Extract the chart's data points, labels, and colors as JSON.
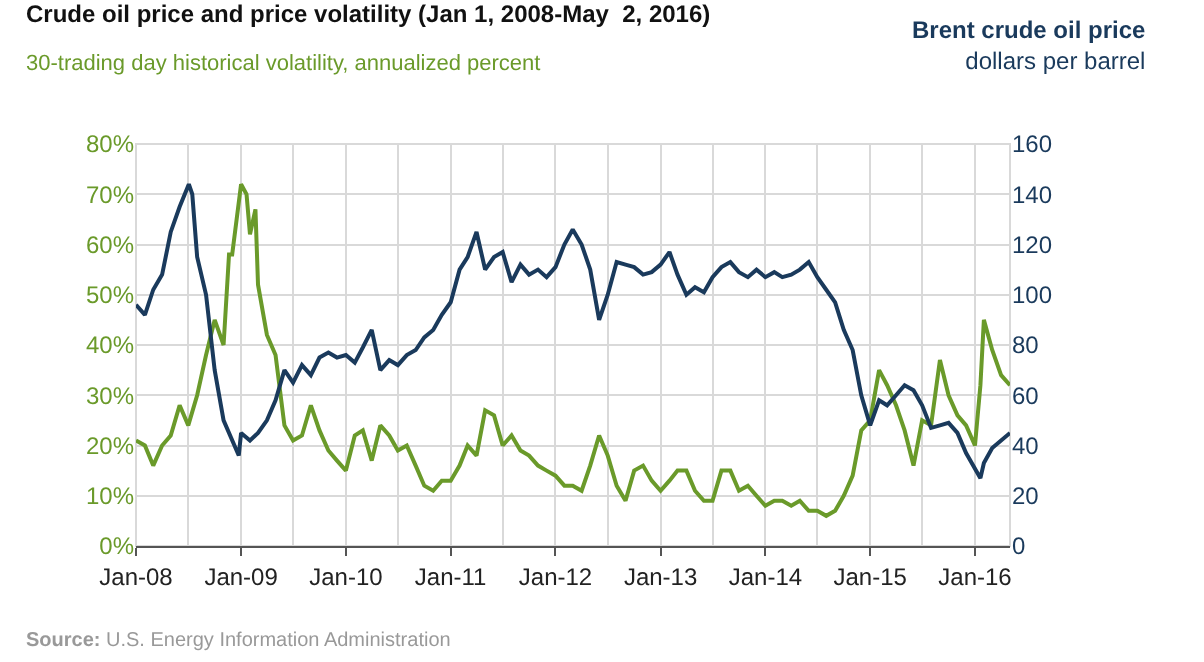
{
  "chart_data": {
    "type": "line",
    "title": "Crude oil price and price volatility (Jan 1, 2008-May  2, 2016)",
    "ylabel": "30-trading day historical volatility, annualized percent",
    "y2label": "Brent crude oil price\ndollars per barrel",
    "annotations": [
      "Source: U.S. Energy Information Administration"
    ],
    "xlim": [
      "2008-01-01",
      "2016-05-02"
    ],
    "xticks": [
      {
        "value": "2008-01-01",
        "label": "Jan-08"
      },
      {
        "value": "2009-01-01",
        "label": "Jan-09"
      },
      {
        "value": "2010-01-01",
        "label": "Jan-10"
      },
      {
        "value": "2011-01-01",
        "label": "Jan-11"
      },
      {
        "value": "2012-01-01",
        "label": "Jan-12"
      },
      {
        "value": "2013-01-01",
        "label": "Jan-13"
      },
      {
        "value": "2014-01-01",
        "label": "Jan-14"
      },
      {
        "value": "2015-01-01",
        "label": "Jan-15"
      },
      {
        "value": "2016-01-01",
        "label": "Jan-16"
      }
    ],
    "ylim": [
      0,
      80
    ],
    "yticks": [
      {
        "value": 0,
        "label": "0%"
      },
      {
        "value": 10,
        "label": "10%"
      },
      {
        "value": 20,
        "label": "20%"
      },
      {
        "value": 30,
        "label": "30%"
      },
      {
        "value": 40,
        "label": "40%"
      },
      {
        "value": 50,
        "label": "50%"
      },
      {
        "value": 60,
        "label": "60%"
      },
      {
        "value": 70,
        "label": "70%"
      },
      {
        "value": 80,
        "label": "80%"
      }
    ],
    "y2lim": [
      0,
      160
    ],
    "y2ticks": [
      0,
      20,
      40,
      60,
      80,
      100,
      120,
      140,
      160
    ],
    "grid": true,
    "series": [
      {
        "color": "#6a9a2a",
        "axis": "y",
        "x": [
          "2008-01-01",
          "2008-02-01",
          "2008-03-01",
          "2008-04-01",
          "2008-05-01",
          "2008-06-01",
          "2008-07-01",
          "2008-08-01",
          "2008-09-01",
          "2008-10-01",
          "2008-11-01",
          "2008-11-20",
          "2008-12-01",
          "2009-01-01",
          "2009-01-20",
          "2009-02-01",
          "2009-02-20",
          "2009-03-01",
          "2009-04-01",
          "2009-05-01",
          "2009-06-01",
          "2009-07-01",
          "2009-08-01",
          "2009-09-01",
          "2009-10-01",
          "2009-11-01",
          "2009-12-01",
          "2010-01-01",
          "2010-02-01",
          "2010-03-01",
          "2010-04-01",
          "2010-05-01",
          "2010-06-01",
          "2010-07-01",
          "2010-08-01",
          "2010-09-01",
          "2010-10-01",
          "2010-11-01",
          "2010-12-01",
          "2011-01-01",
          "2011-02-01",
          "2011-03-01",
          "2011-04-01",
          "2011-05-01",
          "2011-06-01",
          "2011-07-01",
          "2011-08-01",
          "2011-09-01",
          "2011-10-01",
          "2011-11-01",
          "2011-12-01",
          "2012-01-01",
          "2012-02-01",
          "2012-03-01",
          "2012-04-01",
          "2012-05-01",
          "2012-06-01",
          "2012-07-01",
          "2012-08-01",
          "2012-09-01",
          "2012-10-01",
          "2012-11-01",
          "2012-12-01",
          "2013-01-01",
          "2013-02-01",
          "2013-03-01",
          "2013-04-01",
          "2013-05-01",
          "2013-06-01",
          "2013-07-01",
          "2013-08-01",
          "2013-09-01",
          "2013-10-01",
          "2013-11-01",
          "2013-12-01",
          "2014-01-01",
          "2014-02-01",
          "2014-03-01",
          "2014-04-01",
          "2014-05-01",
          "2014-06-01",
          "2014-07-01",
          "2014-08-01",
          "2014-09-01",
          "2014-10-01",
          "2014-11-01",
          "2014-12-01",
          "2015-01-01",
          "2015-02-01",
          "2015-03-01",
          "2015-04-01",
          "2015-05-01",
          "2015-06-01",
          "2015-07-01",
          "2015-08-01",
          "2015-09-01",
          "2015-10-01",
          "2015-11-01",
          "2015-12-01",
          "2016-01-01",
          "2016-01-20",
          "2016-02-01",
          "2016-03-01",
          "2016-04-01",
          "2016-05-02"
        ],
        "values": [
          21,
          20,
          16,
          20,
          22,
          28,
          24,
          30,
          38,
          45,
          40,
          58,
          58,
          72,
          70,
          62,
          67,
          52,
          42,
          38,
          24,
          21,
          22,
          28,
          23,
          19,
          17,
          15,
          22,
          23,
          17,
          24,
          22,
          19,
          20,
          16,
          12,
          11,
          13,
          13,
          16,
          20,
          18,
          27,
          26,
          20,
          22,
          19,
          18,
          16,
          15,
          14,
          12,
          12,
          11,
          16,
          22,
          18,
          12,
          9,
          15,
          16,
          13,
          11,
          13,
          15,
          15,
          11,
          9,
          9,
          15,
          15,
          11,
          12,
          10,
          8,
          9,
          9,
          8,
          9,
          7,
          7,
          6,
          7,
          10,
          14,
          23,
          25,
          35,
          32,
          28,
          23,
          16,
          25,
          24,
          37,
          30,
          26,
          24,
          20,
          32,
          45,
          39,
          34,
          32
        ]
      },
      {
        "color": "#1a3a5c",
        "axis": "y2",
        "x": [
          "2008-01-01",
          "2008-02-01",
          "2008-03-01",
          "2008-04-01",
          "2008-05-01",
          "2008-06-01",
          "2008-07-03",
          "2008-07-15",
          "2008-08-01",
          "2008-09-01",
          "2008-10-01",
          "2008-11-01",
          "2008-12-24",
          "2009-01-01",
          "2009-02-01",
          "2009-03-01",
          "2009-04-01",
          "2009-05-01",
          "2009-06-01",
          "2009-07-01",
          "2009-08-01",
          "2009-09-01",
          "2009-10-01",
          "2009-11-01",
          "2009-12-01",
          "2010-01-01",
          "2010-02-01",
          "2010-03-01",
          "2010-04-01",
          "2010-05-01",
          "2010-06-01",
          "2010-07-01",
          "2010-08-01",
          "2010-09-01",
          "2010-10-01",
          "2010-11-01",
          "2010-12-01",
          "2011-01-01",
          "2011-02-01",
          "2011-03-01",
          "2011-04-01",
          "2011-05-01",
          "2011-06-01",
          "2011-07-01",
          "2011-08-01",
          "2011-09-01",
          "2011-10-01",
          "2011-11-01",
          "2011-12-01",
          "2012-01-01",
          "2012-02-01",
          "2012-03-01",
          "2012-04-01",
          "2012-05-01",
          "2012-06-01",
          "2012-07-01",
          "2012-08-01",
          "2012-09-01",
          "2012-10-01",
          "2012-11-01",
          "2012-12-01",
          "2013-01-01",
          "2013-02-01",
          "2013-03-01",
          "2013-04-01",
          "2013-05-01",
          "2013-06-01",
          "2013-07-01",
          "2013-08-01",
          "2013-09-01",
          "2013-10-01",
          "2013-11-01",
          "2013-12-01",
          "2014-01-01",
          "2014-02-01",
          "2014-03-01",
          "2014-04-01",
          "2014-05-01",
          "2014-06-01",
          "2014-07-01",
          "2014-08-01",
          "2014-09-01",
          "2014-10-01",
          "2014-11-01",
          "2014-12-01",
          "2015-01-01",
          "2015-02-01",
          "2015-03-01",
          "2015-04-01",
          "2015-05-01",
          "2015-06-01",
          "2015-07-01",
          "2015-08-01",
          "2015-09-01",
          "2015-10-01",
          "2015-11-01",
          "2015-12-01",
          "2016-01-20",
          "2016-02-01",
          "2016-03-01",
          "2016-04-01",
          "2016-05-02"
        ],
        "values": [
          96,
          92,
          102,
          108,
          125,
          135,
          144,
          140,
          115,
          100,
          70,
          50,
          36,
          45,
          42,
          45,
          50,
          58,
          70,
          65,
          72,
          68,
          75,
          77,
          75,
          76,
          73,
          79,
          86,
          70,
          74,
          72,
          76,
          78,
          83,
          86,
          92,
          97,
          110,
          115,
          125,
          110,
          115,
          117,
          105,
          112,
          108,
          110,
          107,
          111,
          120,
          126,
          120,
          110,
          90,
          100,
          113,
          112,
          111,
          108,
          109,
          112,
          117,
          108,
          100,
          103,
          101,
          107,
          111,
          113,
          109,
          107,
          110,
          107,
          109,
          107,
          108,
          110,
          113,
          107,
          102,
          97,
          86,
          78,
          60,
          48,
          58,
          56,
          60,
          64,
          62,
          56,
          47,
          48,
          49,
          45,
          37,
          27,
          33,
          39,
          42,
          45
        ]
      }
    ]
  }
}
